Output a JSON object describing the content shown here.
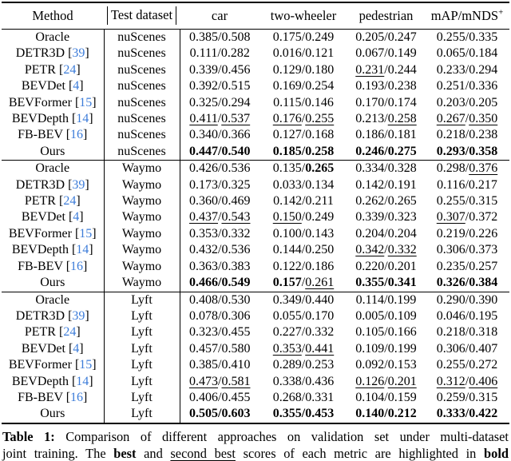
{
  "colors": {
    "background": "#ffffff",
    "text": "#000000",
    "citation": "#3c7cd9",
    "rule": "#000000"
  },
  "table": {
    "headers": {
      "method": "Method",
      "dataset": "Test dataset",
      "car": "car",
      "two_wheeler": "two-wheeler",
      "pedestrian": "pedestrian",
      "map_base": "mAP/mNDS",
      "map_sup": "+"
    },
    "sections": [
      {
        "dataset": "nuScenes",
        "rows": [
          {
            "method": "Oracle",
            "cite": "",
            "metrics": [
              [
                "0.385",
                "",
                "0.508",
                ""
              ],
              [
                "0.175",
                "",
                "0.249",
                ""
              ],
              [
                "0.205",
                "",
                "0.247",
                ""
              ],
              [
                "0.255",
                "",
                "0.335",
                ""
              ]
            ]
          },
          {
            "method": "DETR3D",
            "cite": "39",
            "metrics": [
              [
                "0.111",
                "",
                "0.282",
                ""
              ],
              [
                "0.016",
                "",
                "0.121",
                ""
              ],
              [
                "0.067",
                "",
                "0.149",
                ""
              ],
              [
                "0.065",
                "",
                "0.184",
                ""
              ]
            ]
          },
          {
            "method": "PETR",
            "cite": "24",
            "metrics": [
              [
                "0.339",
                "",
                "0.456",
                ""
              ],
              [
                "0.129",
                "",
                "0.180",
                ""
              ],
              [
                "0.231",
                "u",
                "0.244",
                ""
              ],
              [
                "0.233",
                "",
                "0.294",
                ""
              ]
            ]
          },
          {
            "method": "BEVDet",
            "cite": "4",
            "metrics": [
              [
                "0.392",
                "",
                "0.515",
                ""
              ],
              [
                "0.169",
                "",
                "0.254",
                ""
              ],
              [
                "0.193",
                "",
                "0.238",
                ""
              ],
              [
                "0.251",
                "",
                "0.336",
                ""
              ]
            ]
          },
          {
            "method": "BEVFormer",
            "cite": "15",
            "metrics": [
              [
                "0.325",
                "",
                "0.294",
                ""
              ],
              [
                "0.115",
                "",
                "0.146",
                ""
              ],
              [
                "0.170",
                "",
                "0.174",
                ""
              ],
              [
                "0.203",
                "",
                "0.205",
                ""
              ]
            ]
          },
          {
            "method": "BEVDepth",
            "cite": "14",
            "metrics": [
              [
                "0.411",
                "u",
                "0.537",
                "u"
              ],
              [
                "0.176",
                "u",
                "0.255",
                "u"
              ],
              [
                "0.213",
                "",
                "0.258",
                "u"
              ],
              [
                "0.267",
                "u",
                "0.350",
                "u"
              ]
            ]
          },
          {
            "method": "FB-BEV",
            "cite": "16",
            "metrics": [
              [
                "0.340",
                "",
                "0.366",
                ""
              ],
              [
                "0.127",
                "",
                "0.168",
                ""
              ],
              [
                "0.186",
                "",
                "0.181",
                ""
              ],
              [
                "0.218",
                "",
                "0.238",
                ""
              ]
            ]
          },
          {
            "method": "Ours",
            "cite": "",
            "metrics": [
              [
                "0.447",
                "b",
                "0.540",
                "b"
              ],
              [
                "0.185",
                "b",
                "0.258",
                "b"
              ],
              [
                "0.246",
                "b",
                "0.275",
                "b"
              ],
              [
                "0.293",
                "b",
                "0.358",
                "b"
              ]
            ]
          }
        ]
      },
      {
        "dataset": "Waymo",
        "rows": [
          {
            "method": "Oracle",
            "cite": "",
            "metrics": [
              [
                "0.426",
                "",
                "0.536",
                ""
              ],
              [
                "0.135",
                "",
                "0.265",
                "b"
              ],
              [
                "0.334",
                "",
                "0.328",
                ""
              ],
              [
                "0.298",
                "",
                "0.376",
                "u"
              ]
            ]
          },
          {
            "method": "DETR3D",
            "cite": "39",
            "metrics": [
              [
                "0.173",
                "",
                "0.325",
                ""
              ],
              [
                "0.033",
                "",
                "0.134",
                ""
              ],
              [
                "0.142",
                "",
                "0.191",
                ""
              ],
              [
                "0.116",
                "",
                "0.217",
                ""
              ]
            ]
          },
          {
            "method": "PETR",
            "cite": "24",
            "metrics": [
              [
                "0.360",
                "",
                "0.469",
                ""
              ],
              [
                "0.142",
                "",
                "0.211",
                ""
              ],
              [
                "0.262",
                "",
                "0.265",
                ""
              ],
              [
                "0.255",
                "",
                "0.315",
                ""
              ]
            ]
          },
          {
            "method": "BEVDet",
            "cite": "4",
            "metrics": [
              [
                "0.437",
                "u",
                "0.543",
                "u"
              ],
              [
                "0.150",
                "u",
                "0.249",
                ""
              ],
              [
                "0.339",
                "",
                "0.323",
                ""
              ],
              [
                "0.307",
                "u",
                "0.372",
                ""
              ]
            ]
          },
          {
            "method": "BEVFormer",
            "cite": "15",
            "metrics": [
              [
                "0.353",
                "",
                "0.332",
                ""
              ],
              [
                "0.100",
                "",
                "0.143",
                ""
              ],
              [
                "0.204",
                "",
                "0.204",
                ""
              ],
              [
                "0.219",
                "",
                "0.226",
                ""
              ]
            ]
          },
          {
            "method": "BEVDepth",
            "cite": "14",
            "metrics": [
              [
                "0.432",
                "",
                "0.536",
                ""
              ],
              [
                "0.144",
                "",
                "0.250",
                ""
              ],
              [
                "0.342",
                "u",
                "0.332",
                "u"
              ],
              [
                "0.306",
                "",
                "0.373",
                ""
              ]
            ]
          },
          {
            "method": "FB-BEV",
            "cite": "16",
            "metrics": [
              [
                "0.363",
                "",
                "0.383",
                ""
              ],
              [
                "0.122",
                "",
                "0.186",
                ""
              ],
              [
                "0.220",
                "",
                "0.201",
                ""
              ],
              [
                "0.235",
                "",
                "0.257",
                ""
              ]
            ]
          },
          {
            "method": "Ours",
            "cite": "",
            "metrics": [
              [
                "0.466",
                "b",
                "0.549",
                "b"
              ],
              [
                "0.157",
                "b",
                "0.261",
                "u"
              ],
              [
                "0.355",
                "b",
                "0.341",
                "b"
              ],
              [
                "0.326",
                "b",
                "0.384",
                "b"
              ]
            ]
          }
        ]
      },
      {
        "dataset": "Lyft",
        "rows": [
          {
            "method": "Oracle",
            "cite": "",
            "metrics": [
              [
                "0.408",
                "",
                "0.530",
                ""
              ],
              [
                "0.349",
                "",
                "0.440",
                ""
              ],
              [
                "0.114",
                "",
                "0.199",
                ""
              ],
              [
                "0.290",
                "",
                "0.390",
                ""
              ]
            ]
          },
          {
            "method": "DETR3D",
            "cite": "39",
            "metrics": [
              [
                "0.078",
                "",
                "0.306",
                ""
              ],
              [
                "0.055",
                "",
                "0.170",
                ""
              ],
              [
                "0.005",
                "",
                "0.109",
                ""
              ],
              [
                "0.046",
                "",
                "0.195",
                ""
              ]
            ]
          },
          {
            "method": "PETR",
            "cite": "24",
            "metrics": [
              [
                "0.323",
                "",
                "0.455",
                ""
              ],
              [
                "0.227",
                "",
                "0.332",
                ""
              ],
              [
                "0.105",
                "",
                "0.166",
                ""
              ],
              [
                "0.218",
                "",
                "0.318",
                ""
              ]
            ]
          },
          {
            "method": "BEVDet",
            "cite": "4",
            "metrics": [
              [
                "0.457",
                "",
                "0.580",
                ""
              ],
              [
                "0.353",
                "u",
                "0.441",
                "u"
              ],
              [
                "0.109",
                "",
                "0.199",
                ""
              ],
              [
                "0.306",
                "",
                "0.407",
                ""
              ]
            ]
          },
          {
            "method": "BEVFormer",
            "cite": "15",
            "metrics": [
              [
                "0.385",
                "",
                "0.410",
                ""
              ],
              [
                "0.289",
                "",
                "0.253",
                ""
              ],
              [
                "0.092",
                "",
                "0.153",
                ""
              ],
              [
                "0.255",
                "",
                "0.272",
                ""
              ]
            ]
          },
          {
            "method": "BEVDepth",
            "cite": "14",
            "metrics": [
              [
                "0.473",
                "u",
                "0.581",
                "u"
              ],
              [
                "0.338",
                "",
                "0.436",
                ""
              ],
              [
                "0.126",
                "u",
                "0.201",
                "u"
              ],
              [
                "0.312",
                "u",
                "0.406",
                "u"
              ]
            ]
          },
          {
            "method": "FB-BEV",
            "cite": "16",
            "metrics": [
              [
                "0.406",
                "",
                "0.455",
                ""
              ],
              [
                "0.268",
                "",
                "0.331",
                ""
              ],
              [
                "0.104",
                "",
                "0.159",
                ""
              ],
              [
                "0.259",
                "",
                "0.315",
                ""
              ]
            ]
          },
          {
            "method": "Ours",
            "cite": "",
            "metrics": [
              [
                "0.505",
                "b",
                "0.603",
                "b"
              ],
              [
                "0.355",
                "b",
                "0.453",
                "b"
              ],
              [
                "0.140",
                "b",
                "0.212",
                "b"
              ],
              [
                "0.333",
                "b",
                "0.422",
                "b"
              ]
            ]
          }
        ]
      }
    ]
  },
  "caption": {
    "lines": [
      [
        [
          "Table 1:",
          "b"
        ],
        [
          " Comparison of different approaches on validation set under multi-dataset",
          ""
        ]
      ],
      [
        [
          "joint training. The ",
          ""
        ],
        [
          "best",
          "b"
        ],
        [
          " and ",
          ""
        ],
        [
          "second best",
          "u"
        ],
        [
          " scores of each metric are highlighted in ",
          ""
        ],
        [
          "bold",
          "b"
        ]
      ]
    ]
  }
}
